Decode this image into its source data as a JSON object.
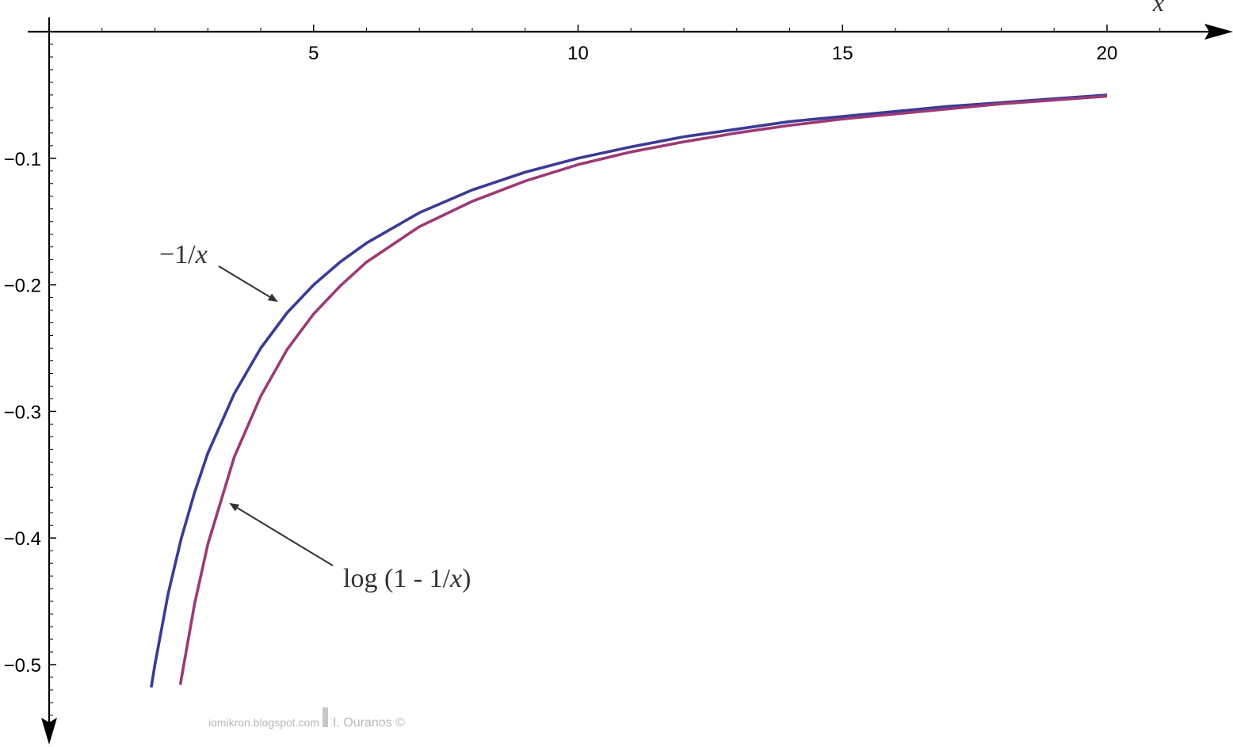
{
  "chart_data": {
    "type": "line",
    "xlabel": "x",
    "ylabel": "",
    "xlim": [
      0,
      21.3
    ],
    "ylim": [
      -0.5,
      0
    ],
    "x_ticks": [
      5,
      10,
      15,
      20
    ],
    "x_tick_labels": [
      "5",
      "10",
      "15",
      "20"
    ],
    "y_ticks": [
      -0.1,
      -0.2,
      -0.3,
      -0.4,
      -0.5
    ],
    "y_tick_labels": [
      "−0.1",
      "−0.2",
      "−0.3",
      "−0.4",
      "−0.5"
    ],
    "grid": false,
    "series": [
      {
        "name": "−1/x",
        "color": "#3b3b97",
        "x": [
          1.93,
          2,
          2.25,
          2.5,
          2.75,
          3,
          3.5,
          4,
          4.5,
          5,
          5.5,
          6,
          7,
          8,
          9,
          10,
          11,
          12,
          13,
          14,
          15,
          16,
          17,
          18,
          19,
          20
        ],
        "y": [
          -0.518,
          -0.5,
          -0.444,
          -0.4,
          -0.364,
          -0.333,
          -0.286,
          -0.25,
          -0.222,
          -0.2,
          -0.182,
          -0.167,
          -0.143,
          -0.125,
          -0.111,
          -0.1,
          -0.091,
          -0.083,
          -0.077,
          -0.071,
          -0.067,
          -0.063,
          -0.059,
          -0.056,
          -0.053,
          -0.05
        ]
      },
      {
        "name": "log (1 - 1/x)",
        "color": "#9b3a75",
        "x": [
          2.48,
          2.5,
          2.75,
          3,
          3.5,
          4,
          4.5,
          5,
          5.5,
          6,
          7,
          8,
          9,
          10,
          11,
          12,
          13,
          14,
          15,
          16,
          17,
          18,
          19,
          20
        ],
        "y": [
          -0.516,
          -0.511,
          -0.452,
          -0.405,
          -0.336,
          -0.288,
          -0.251,
          -0.223,
          -0.201,
          -0.182,
          -0.154,
          -0.134,
          -0.118,
          -0.105,
          -0.095,
          -0.087,
          -0.08,
          -0.074,
          -0.069,
          -0.065,
          -0.061,
          -0.057,
          -0.054,
          -0.051
        ]
      }
    ],
    "annotations": [
      {
        "text_main": "−1/",
        "text_var": "x",
        "target": "−1/x"
      },
      {
        "text_main": "log (1 - 1/",
        "text_var": "x",
        "text_end": ")",
        "target": "log (1 - 1/x)"
      }
    ]
  },
  "watermark": {
    "left": "iomikron.blogspot.com",
    "right": "I. Ouranos ©"
  }
}
